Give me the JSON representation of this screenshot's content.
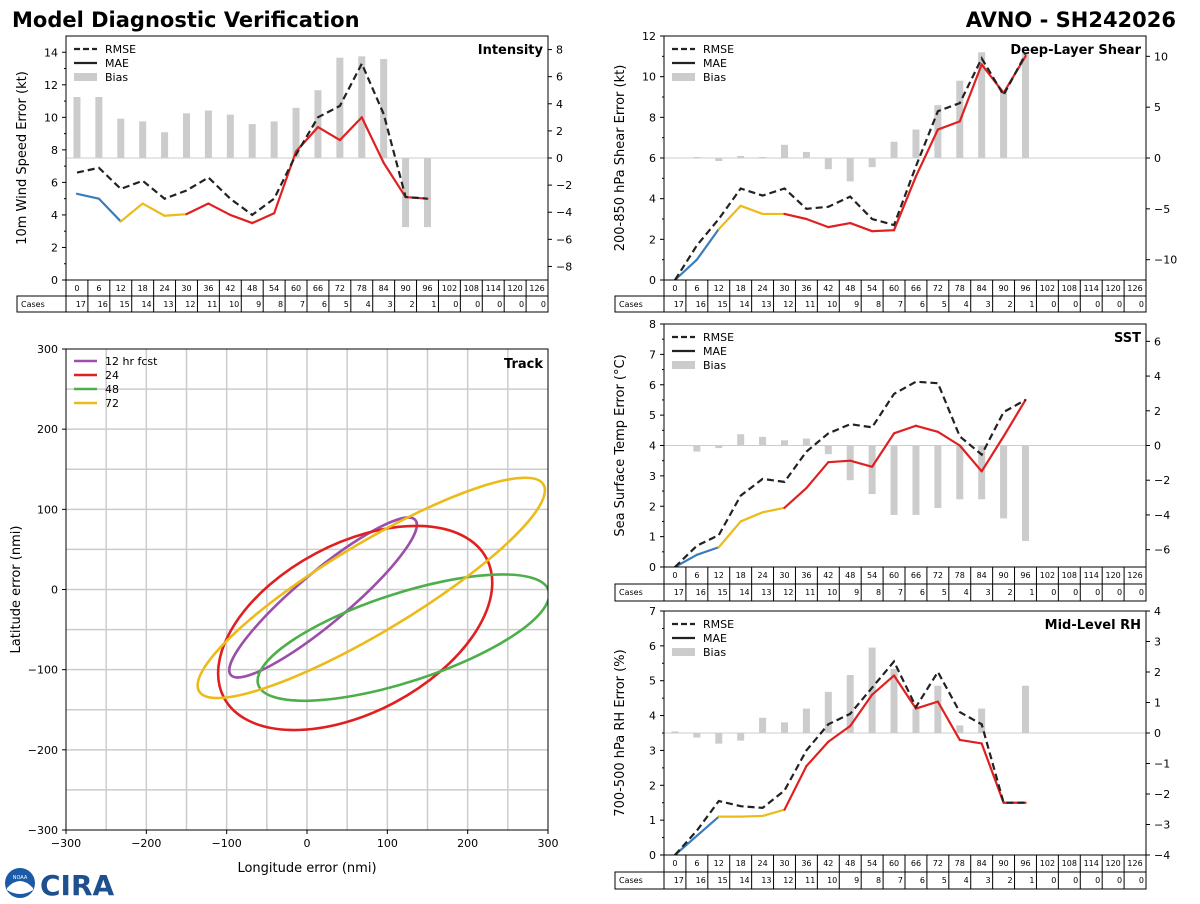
{
  "title_left": "Model Diagnostic Verification",
  "title_right": "AVNO - SH242026",
  "logo_text": "CIRA",
  "logo_badge": "NOAA",
  "colors": {
    "rmse": "#222222",
    "mae_blue": "#3a7dbf",
    "mae_yellow": "#ecbb1a",
    "mae_red": "#e02020",
    "bias": "#cccccc",
    "grid": "#cccccc",
    "ell_12": "#9b4fa8",
    "ell_24": "#e02020",
    "ell_48": "#4daf4a",
    "ell_72": "#ecbb1a"
  },
  "hours": [
    "0",
    "6",
    "12",
    "18",
    "24",
    "30",
    "36",
    "42",
    "48",
    "54",
    "60",
    "66",
    "72",
    "78",
    "84",
    "90",
    "96",
    "102",
    "108",
    "114",
    "120",
    "126"
  ],
  "cases_label": "Cases",
  "legend_labels": {
    "rmse": "RMSE",
    "mae": "MAE",
    "bias": "Bias"
  },
  "chart_data": [
    {
      "id": "intensity",
      "type": "line+bar",
      "title": "Intensity",
      "ylabel": "10m Wind Speed Error (kt)",
      "ylim": [
        0,
        15
      ],
      "yticks": [
        "0",
        "2",
        "4",
        "6",
        "8",
        "10",
        "12",
        "14"
      ],
      "bias_lim": [
        -9,
        9
      ],
      "bias_ticks": [
        "−8",
        "−6",
        "−4",
        "−2",
        "0",
        "2",
        "4",
        "6",
        "8"
      ],
      "rmse": [
        6.6,
        6.9,
        5.6,
        6.1,
        5.0,
        5.5,
        6.3,
        5.0,
        4.0,
        5.0,
        7.7,
        10.0,
        10.7,
        13.3,
        10.2,
        5.1,
        5.0
      ],
      "mae": [
        5.3,
        5.0,
        3.6,
        4.7,
        3.95,
        4.05,
        4.7,
        4.0,
        3.5,
        4.1,
        7.9,
        9.4,
        8.6,
        10.0,
        7.2,
        5.1,
        5.0
      ],
      "bias": [
        4.5,
        4.5,
        2.9,
        2.7,
        1.9,
        3.3,
        3.5,
        3.2,
        2.5,
        2.7,
        3.7,
        5.0,
        7.4,
        7.5,
        7.3,
        -5.1,
        -5.1
      ],
      "cases": [
        "17",
        "16",
        "15",
        "14",
        "13",
        "12",
        "11",
        "10",
        "9",
        "8",
        "7",
        "6",
        "5",
        "4",
        "3",
        "2",
        "1",
        "0",
        "0",
        "0",
        "0",
        "0"
      ]
    },
    {
      "id": "shear",
      "type": "line+bar",
      "title": "Deep-Layer Shear",
      "ylabel": "200-850 hPa Shear Error (kt)",
      "ylim": [
        0,
        12
      ],
      "yticks": [
        "0",
        "2",
        "4",
        "6",
        "8",
        "10",
        "12"
      ],
      "bias_lim": [
        -12,
        12
      ],
      "bias_ticks": [
        "−10",
        "−5",
        "0",
        "5",
        "10"
      ],
      "rmse": [
        0,
        1.7,
        3.0,
        4.5,
        4.15,
        4.5,
        3.5,
        3.6,
        4.1,
        3.0,
        2.7,
        5.6,
        8.3,
        8.7,
        10.9,
        9.1,
        11.1
      ],
      "mae": [
        0,
        1.0,
        2.5,
        3.65,
        3.25,
        3.25,
        3.0,
        2.6,
        2.8,
        2.4,
        2.45,
        5.1,
        7.4,
        7.8,
        10.6,
        9.2,
        11.0
      ],
      "bias": [
        0,
        0.1,
        -0.3,
        0.2,
        0.1,
        1.3,
        0.6,
        -1.1,
        -2.3,
        -0.9,
        1.6,
        2.8,
        5.2,
        7.6,
        10.4,
        6.6,
        10.3
      ],
      "cases": [
        "17",
        "16",
        "15",
        "14",
        "13",
        "12",
        "11",
        "10",
        "9",
        "8",
        "7",
        "6",
        "5",
        "4",
        "3",
        "2",
        "1",
        "0",
        "0",
        "0",
        "0",
        "0"
      ]
    },
    {
      "id": "sst",
      "type": "line+bar",
      "title": "SST",
      "ylabel": "Sea Surface Temp Error (°C)",
      "ylim": [
        0,
        8
      ],
      "yticks": [
        "0",
        "1",
        "2",
        "3",
        "4",
        "5",
        "6",
        "7",
        "8"
      ],
      "bias_lim": [
        -7,
        7
      ],
      "bias_ticks": [
        "−6",
        "−4",
        "−2",
        "0",
        "2",
        "4",
        "6"
      ],
      "rmse": [
        0,
        0.7,
        1.05,
        2.35,
        2.9,
        2.8,
        3.8,
        4.4,
        4.7,
        4.6,
        5.7,
        6.1,
        6.05,
        4.3,
        3.7,
        5.1,
        5.5
      ],
      "mae": [
        0,
        0.4,
        0.65,
        1.5,
        1.8,
        1.95,
        2.6,
        3.45,
        3.5,
        3.3,
        4.4,
        4.65,
        4.45,
        4.0,
        3.15,
        4.3,
        5.5
      ],
      "bias": [
        0,
        -0.35,
        -0.15,
        0.65,
        0.5,
        0.3,
        0.4,
        -0.5,
        -2.0,
        -2.8,
        -4.0,
        -4.0,
        -3.6,
        -3.1,
        -3.1,
        -4.2,
        -5.5
      ],
      "cases": [
        "17",
        "16",
        "15",
        "14",
        "13",
        "12",
        "11",
        "10",
        "9",
        "8",
        "7",
        "6",
        "5",
        "4",
        "3",
        "2",
        "1",
        "0",
        "0",
        "0",
        "0",
        "0"
      ]
    },
    {
      "id": "rh",
      "type": "line+bar",
      "title": "Mid-Level RH",
      "ylabel": "700-500 hPa RH Error (%)",
      "ylim": [
        0,
        7
      ],
      "yticks": [
        "0",
        "1",
        "2",
        "3",
        "4",
        "5",
        "6",
        "7"
      ],
      "bias_lim": [
        -4,
        4
      ],
      "bias_ticks": [
        "−4",
        "−3",
        "−2",
        "−1",
        "0",
        "1",
        "2",
        "3",
        "4"
      ],
      "rmse": [
        0,
        0.7,
        1.55,
        1.4,
        1.35,
        1.85,
        3.0,
        3.75,
        4.05,
        4.8,
        5.55,
        4.25,
        5.25,
        4.1,
        3.75,
        1.5,
        1.5
      ],
      "mae": [
        0,
        0.55,
        1.1,
        1.1,
        1.12,
        1.3,
        2.55,
        3.25,
        3.7,
        4.6,
        5.15,
        4.2,
        4.4,
        3.3,
        3.2,
        1.5,
        1.5
      ],
      "bias": [
        0.05,
        -0.15,
        -0.35,
        -0.25,
        0.5,
        0.35,
        0.8,
        1.35,
        1.9,
        2.8,
        2.1,
        0.8,
        1.55,
        0.25,
        0.8,
        0,
        1.55
      ],
      "cases": [
        "17",
        "16",
        "15",
        "14",
        "13",
        "12",
        "11",
        "10",
        "9",
        "8",
        "7",
        "6",
        "5",
        "4",
        "3",
        "2",
        "1",
        "0",
        "0",
        "0",
        "0",
        "0"
      ]
    },
    {
      "id": "track",
      "type": "ellipse",
      "title": "Track",
      "xlabel": "Longitude error (nmi)",
      "ylabel": "Latitude error (nmi)",
      "xlim": [
        -300,
        300
      ],
      "ylim": [
        -300,
        300
      ],
      "xticks": [
        "−300",
        "−200",
        "−100",
        "0",
        "100",
        "200",
        "300"
      ],
      "yticks": [
        "−300",
        "−200",
        "−100",
        "0",
        "100",
        "200",
        "300"
      ],
      "ellipses": [
        {
          "label": "12 hr fcst",
          "cx": 20,
          "cy": -10,
          "a": 150,
          "b": 32,
          "angle_deg": -40
        },
        {
          "label": "24",
          "cx": 60,
          "cy": -48,
          "a": 185,
          "b": 105,
          "angle_deg": -28
        },
        {
          "label": "48",
          "cx": 120,
          "cy": -60,
          "a": 190,
          "b": 55,
          "angle_deg": -18
        },
        {
          "label": "72",
          "cx": 80,
          "cy": 2,
          "a": 250,
          "b": 55,
          "angle_deg": -31
        }
      ]
    }
  ]
}
